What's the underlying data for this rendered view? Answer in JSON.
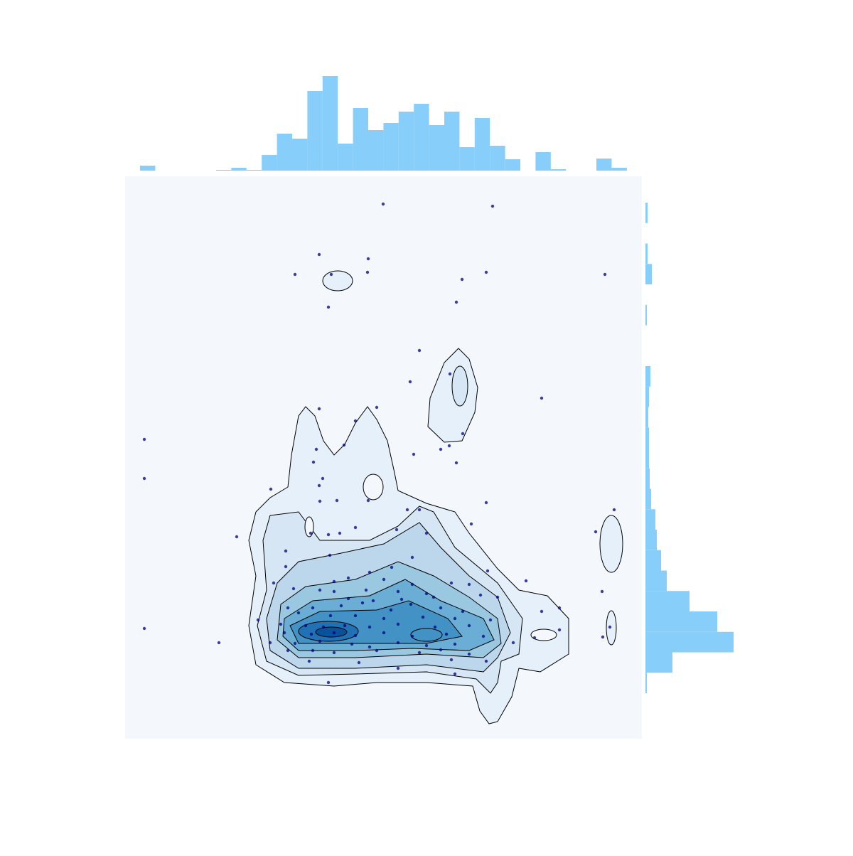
{
  "chart_data": [
    {
      "type": "scatter",
      "color": "#00007f",
      "background": "#f4f8fd",
      "xlim": [
        0,
        727
      ],
      "ylim": [
        0,
        791
      ],
      "x": [
        363,
        517,
        273,
        342,
        239,
        290,
        341,
        508,
        675,
        474,
        466,
        286,
        414,
        457,
        401,
        586,
        273,
        354,
        27,
        475,
        324,
        269,
        308,
        444,
        456,
        406,
        265,
        466,
        27,
        278,
        273,
        205,
        298,
        342,
        274,
        508,
        397,
        414,
        688,
        487,
        324,
        261,
        286,
        302,
        662,
        382,
        424,
        157,
        226,
        288,
        404,
        226,
        375,
        344,
        510,
        314,
        364,
        209,
        564,
        294,
        459,
        484,
        404,
        237,
        274,
        294,
        339,
        384,
        671,
        424,
        500,
        314,
        349,
        389,
        434,
        524,
        229,
        264,
        304,
        334,
        374,
        402,
        444,
        475,
        586,
        611,
        244,
        289,
        324,
        364,
        419,
        464,
        514,
        187,
        219,
        254,
        279,
        309,
        344,
        384,
        436,
        484,
        27,
        611,
        682,
        224,
        262,
        294,
        324,
        364,
        404,
        452,
        504,
        672,
        576,
        132,
        204,
        239,
        274,
        319,
        344,
        384,
        424,
        464,
        546,
        229,
        264,
        294,
        354,
        414,
        444,
        484,
        259,
        329,
        459,
        508,
        384,
        464,
        286
      ],
      "values": [
        752,
        749,
        681,
        675,
        653,
        653,
        656,
        656,
        653,
        646,
        614,
        607,
        546,
        513,
        502,
        479,
        464,
        466,
        421,
        429,
        447,
        407,
        413,
        407,
        412,
        400,
        389,
        388,
        366,
        366,
        356,
        351,
        335,
        335,
        334,
        332,
        322,
        322,
        322,
        302,
        297,
        289,
        287,
        289,
        291,
        294,
        289,
        284,
        264,
        258,
        255,
        242,
        241,
        234,
        236,
        226,
        224,
        219,
        222,
        221,
        219,
        217,
        217,
        211,
        209,
        207,
        209,
        207,
        207,
        204,
        202,
        197,
        194,
        196,
        199,
        199,
        184,
        184,
        187,
        191,
        181,
        189,
        184,
        179,
        179,
        184,
        177,
        173,
        173,
        169,
        171,
        169,
        167,
        167,
        161,
        159,
        157,
        159,
        157,
        161,
        157,
        159,
        155,
        153,
        157,
        149,
        147,
        149,
        145,
        149,
        144,
        147,
        144,
        143,
        142,
        135,
        135,
        134,
        137,
        133,
        129,
        135,
        131,
        133,
        135,
        124,
        124,
        121,
        124,
        121,
        125,
        119,
        109,
        107,
        111,
        109,
        99,
        91,
        79
      ]
    },
    {
      "type": "histogram",
      "orientation": "vertical",
      "color": "#87cefa",
      "ylim": [
        0,
        14
      ],
      "bins": [
        21,
        42.4,
        63.8,
        85.2,
        106.6,
        128,
        149.4,
        170.8,
        192.2,
        213.6,
        235,
        256.4,
        277.8,
        299.2,
        320.6,
        342,
        363.4,
        384.8,
        406.2,
        427.6,
        449,
        470.4,
        491.8,
        513.2,
        534.6,
        556,
        577.4,
        598.8,
        620.2,
        641.6,
        663,
        684.4,
        705.8
      ],
      "counts": [
        0.7,
        0,
        0,
        0,
        0,
        0.1,
        0.4,
        0.1,
        2.2,
        5.2,
        4.5,
        11.2,
        13.3,
        3.8,
        8.8,
        5.7,
        6.7,
        8.3,
        9.4,
        6.4,
        8.3,
        3.3,
        7.4,
        3.5,
        1.6,
        0,
        2.6,
        0.2,
        0,
        0,
        1.7,
        0.4
      ]
    },
    {
      "type": "histogram",
      "orientation": "horizontal",
      "color": "#87cefa",
      "xlim": [
        0,
        14
      ],
      "bins": [
        64,
        92.75,
        121.5,
        150.25,
        179,
        207.75,
        236.5,
        265.25,
        294,
        322.75,
        351.5,
        380.25,
        409,
        437.75,
        466.5,
        495.25,
        524,
        552.75,
        581.5,
        610.25,
        639,
        667.75,
        696.5,
        725.25,
        754
      ],
      "counts": [
        0.2,
        3.8,
        12.4,
        10.1,
        6.2,
        3,
        2.2,
        1.6,
        1.4,
        0.8,
        0.6,
        0.5,
        0.5,
        0.4,
        0.5,
        0.7,
        0,
        0,
        0.2,
        0,
        0.9,
        0.3,
        0,
        0.3
      ]
    }
  ]
}
